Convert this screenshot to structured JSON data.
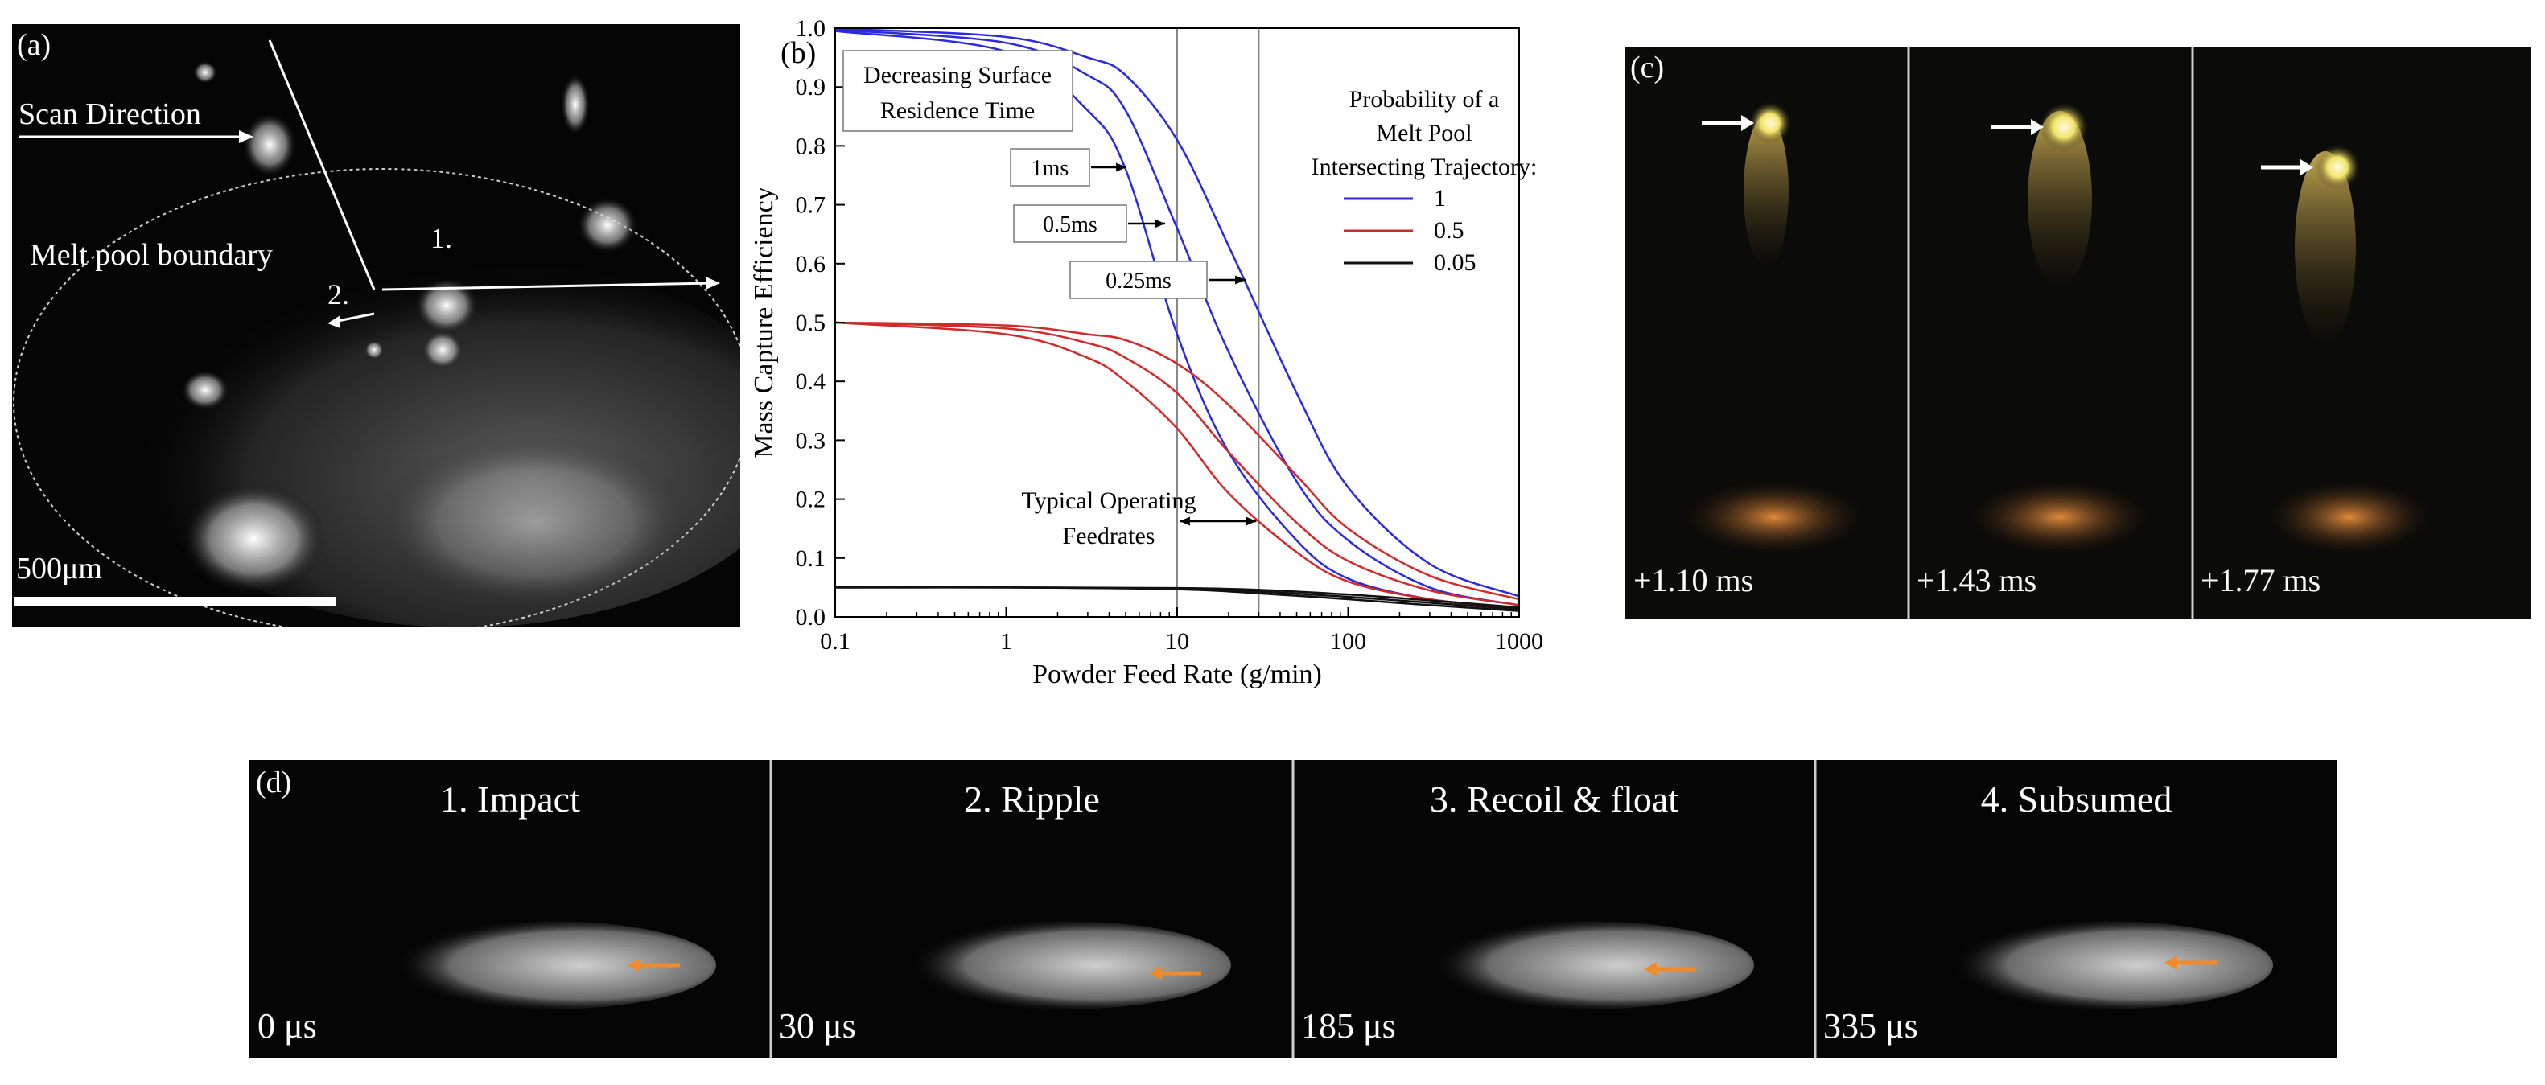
{
  "panel_a": {
    "label": "(a)",
    "scan_direction": "Scan Direction",
    "melt_pool_boundary": "Melt pool boundary",
    "marker_1": "1.",
    "marker_2": "2.",
    "scale_bar": "500μm"
  },
  "panel_c": {
    "label": "(c)",
    "frames": [
      {
        "time": "+1.10 ms"
      },
      {
        "time": "+1.43 ms"
      },
      {
        "time": "+1.77 ms"
      }
    ]
  },
  "panel_d": {
    "label": "(d)",
    "frames": [
      {
        "title": "1. Impact",
        "time": "0 μs"
      },
      {
        "title": "2. Ripple",
        "time": "30 μs"
      },
      {
        "title": "3. Recoil & float",
        "time": "185 μs"
      },
      {
        "title": "4. Subsumed",
        "time": "335 μs"
      }
    ]
  },
  "chart_data": {
    "type": "line",
    "panel_label": "(b)",
    "xlabel": "Powder Feed Rate (g/min)",
    "ylabel": "Mass Capture Efficiency",
    "xscale": "log",
    "xlim": [
      0.1,
      1000
    ],
    "ylim": [
      0.0,
      1.0
    ],
    "x_ticks": [
      "0.1",
      "1",
      "10",
      "100",
      "1000"
    ],
    "y_ticks": [
      "0.0",
      "0.1",
      "0.2",
      "0.3",
      "0.4",
      "0.5",
      "0.6",
      "0.7",
      "0.8",
      "0.9",
      "1.0"
    ],
    "vlines": [
      10,
      30
    ],
    "legend": {
      "title_lines": [
        "Probability of a",
        "Melt Pool",
        "Intersecting Trajectory:"
      ],
      "entries": [
        {
          "label": "1",
          "color": "#2b2bdc"
        },
        {
          "label": "0.5",
          "color": "#d12a2a"
        },
        {
          "label": "0.05",
          "color": "#111111"
        }
      ]
    },
    "annotations": {
      "decreasing_line1": "Decreasing Surface",
      "decreasing_line2": "Residence Time",
      "t1": "1ms",
      "t2": "0.5ms",
      "t3": "0.25ms",
      "typical_line1": "Typical Operating",
      "typical_line2": "Feedrates"
    },
    "series": [
      {
        "name": "P=1, 1ms",
        "group": "1",
        "color": "#2b2bdc",
        "x": [
          0.1,
          1,
          3,
          5,
          10,
          20,
          50,
          100,
          300,
          1000
        ],
        "y": [
          0.995,
          0.96,
          0.86,
          0.76,
          0.48,
          0.28,
          0.13,
          0.065,
          0.03,
          0.015
        ]
      },
      {
        "name": "P=1, 0.5ms",
        "group": "1",
        "color": "#2b2bdc",
        "x": [
          0.1,
          1,
          3,
          5,
          10,
          20,
          50,
          100,
          300,
          1000
        ],
        "y": [
          0.997,
          0.975,
          0.92,
          0.86,
          0.66,
          0.45,
          0.23,
          0.13,
          0.05,
          0.02
        ]
      },
      {
        "name": "P=1, 0.25ms",
        "group": "1",
        "color": "#2b2bdc",
        "x": [
          0.1,
          1,
          3,
          5,
          10,
          20,
          50,
          100,
          300,
          1000
        ],
        "y": [
          0.999,
          0.985,
          0.95,
          0.92,
          0.81,
          0.63,
          0.38,
          0.22,
          0.09,
          0.035
        ]
      },
      {
        "name": "P=0.5, 1ms",
        "group": "0.5",
        "color": "#d12a2a",
        "x": [
          0.1,
          1,
          3,
          5,
          10,
          20,
          50,
          100,
          300,
          1000
        ],
        "y": [
          0.5,
          0.48,
          0.44,
          0.4,
          0.32,
          0.21,
          0.11,
          0.06,
          0.03,
          0.015
        ]
      },
      {
        "name": "P=0.5, 0.5ms",
        "group": "0.5",
        "color": "#d12a2a",
        "x": [
          0.1,
          1,
          3,
          5,
          10,
          20,
          50,
          100,
          300,
          1000
        ],
        "y": [
          0.5,
          0.49,
          0.465,
          0.44,
          0.38,
          0.28,
          0.16,
          0.095,
          0.045,
          0.02
        ]
      },
      {
        "name": "P=0.5, 0.25ms",
        "group": "0.5",
        "color": "#d12a2a",
        "x": [
          0.1,
          1,
          3,
          5,
          10,
          20,
          50,
          100,
          300,
          1000
        ],
        "y": [
          0.5,
          0.495,
          0.48,
          0.47,
          0.43,
          0.36,
          0.24,
          0.15,
          0.07,
          0.03
        ]
      },
      {
        "name": "P=0.05, 1ms",
        "group": "0.05",
        "color": "#111111",
        "x": [
          0.1,
          1,
          10,
          30,
          100,
          300,
          1000
        ],
        "y": [
          0.05,
          0.05,
          0.047,
          0.04,
          0.03,
          0.02,
          0.01
        ]
      },
      {
        "name": "P=0.05, 0.5ms",
        "group": "0.05",
        "color": "#111111",
        "x": [
          0.1,
          1,
          10,
          30,
          100,
          300,
          1000
        ],
        "y": [
          0.05,
          0.05,
          0.048,
          0.043,
          0.034,
          0.024,
          0.013
        ]
      },
      {
        "name": "P=0.05, 0.25ms",
        "group": "0.05",
        "color": "#111111",
        "x": [
          0.1,
          1,
          10,
          30,
          100,
          300,
          1000
        ],
        "y": [
          0.05,
          0.05,
          0.049,
          0.046,
          0.038,
          0.028,
          0.016
        ]
      }
    ]
  }
}
